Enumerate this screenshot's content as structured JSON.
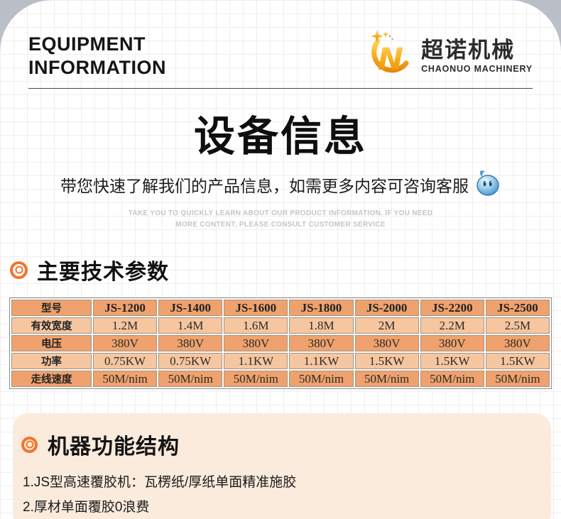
{
  "header": {
    "title_line1": "EQUIPMENT",
    "title_line2": "INFORMATION",
    "logo": {
      "brand_cn": "超诺机械",
      "brand_en": "CHAONUO MACHINERY"
    }
  },
  "hero": {
    "title": "设备信息",
    "subtitle": "带您快速了解我们的产品信息，如需更多内容可咨询客服",
    "caption_line1": "TAKE YOU TO QUICKLY LEARN ABOUT OUR PRODUCT INFORMATION. IF YOU NEED",
    "caption_line2": "MORE CONTENT, PLEASE CONSULT CUSTOMER SERVICE"
  },
  "specs_section": {
    "heading": "主要技术参数",
    "table": {
      "header_row": [
        "型号",
        "JS-1200",
        "JS-1400",
        "JS-1600",
        "JS-1800",
        "JS-2000",
        "JS-2200",
        "JS-2500"
      ],
      "rows": [
        {
          "label": "有效宽度",
          "values": [
            "1.2M",
            "1.4M",
            "1.6M",
            "1.8M",
            "2M",
            "2.2M",
            "2.5M"
          ]
        },
        {
          "label": "电压",
          "values": [
            "380V",
            "380V",
            "380V",
            "380V",
            "380V",
            "380V",
            "380V"
          ]
        },
        {
          "label": "功率",
          "values": [
            "0.75KW",
            "0.75KW",
            "1.1KW",
            "1.1KW",
            "1.5KW",
            "1.5KW",
            "1.5KW"
          ]
        },
        {
          "label": "走线速度",
          "values": [
            "50M/nim",
            "50M/nim",
            "50M/nim",
            "50M/nim",
            "50M/nim",
            "50M/nim",
            "50M/nim"
          ]
        }
      ]
    }
  },
  "features_section": {
    "heading": "机器功能结构",
    "items": [
      "1.JS型高速覆胶机：瓦楞纸/厚纸单面精准施胶",
      "2.厚材单面覆胶0浪费"
    ]
  },
  "icons": {
    "logo_icon": "gold-n-swoosh-logo-icon",
    "section_bullet": "target-double-circle-icon",
    "mascot": "customer-service-droplet-icon"
  },
  "colors": {
    "accent_orange": "#f3742c",
    "table_row_dark": "#efa26d",
    "table_row_light": "#f6c6a0",
    "feature_card_bg": "#fbebdd",
    "caption_gray": "#c5c5c5",
    "logo_gold": "#f6a91c",
    "mascot_blue": "#4292cc"
  }
}
